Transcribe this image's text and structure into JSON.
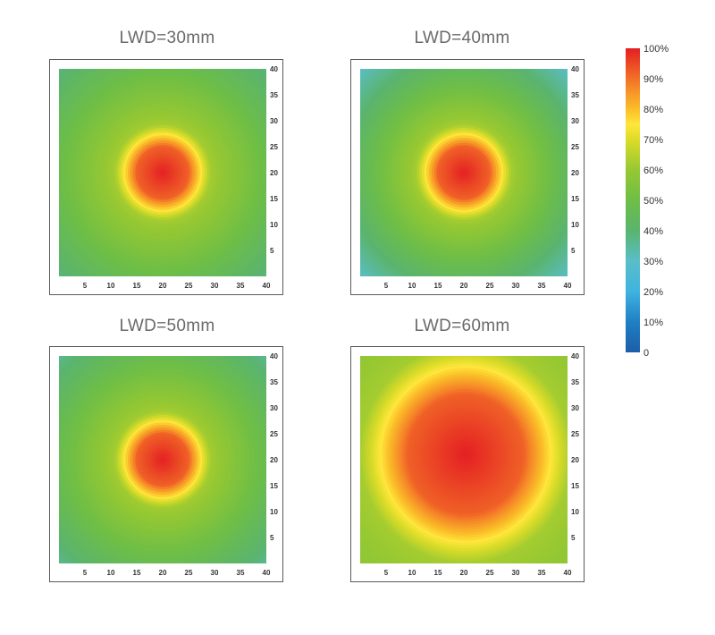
{
  "chart_data": [
    {
      "type": "heatmap",
      "title": "LWD=30mm",
      "x_ticks": [
        "5",
        "10",
        "15",
        "20",
        "25",
        "30",
        "35",
        "40"
      ],
      "y_ticks": [
        "40",
        "35",
        "30",
        "25",
        "20",
        "15",
        "10",
        "5"
      ],
      "xlim": [
        0,
        40
      ],
      "ylim": [
        0,
        40
      ],
      "peak_center": [
        20,
        20
      ],
      "peak_value_percent": 100,
      "edge_value_percent": 38,
      "core_radius": 7
    },
    {
      "type": "heatmap",
      "title": "LWD=40mm",
      "x_ticks": [
        "5",
        "10",
        "15",
        "20",
        "25",
        "30",
        "35",
        "40"
      ],
      "y_ticks": [
        "40",
        "35",
        "30",
        "25",
        "20",
        "15",
        "10",
        "5"
      ],
      "xlim": [
        0,
        40
      ],
      "ylim": [
        0,
        40
      ],
      "peak_center": [
        20,
        20
      ],
      "peak_value_percent": 100,
      "edge_value_percent": 30,
      "core_radius": 7
    },
    {
      "type": "heatmap",
      "title": "LWD=50mm",
      "x_ticks": [
        "5",
        "10",
        "15",
        "20",
        "25",
        "30",
        "35",
        "40"
      ],
      "y_ticks": [
        "40",
        "35",
        "30",
        "25",
        "20",
        "15",
        "10",
        "5"
      ],
      "xlim": [
        0,
        40
      ],
      "ylim": [
        0,
        40
      ],
      "peak_center": [
        20,
        20
      ],
      "peak_value_percent": 100,
      "edge_value_percent": 36,
      "core_radius": 7
    },
    {
      "type": "heatmap",
      "title": "LWD=60mm",
      "x_ticks": [
        "5",
        "10",
        "15",
        "20",
        "25",
        "30",
        "35",
        "40"
      ],
      "y_ticks": [
        "40",
        "35",
        "30",
        "25",
        "20",
        "15",
        "10",
        "5"
      ],
      "xlim": [
        0,
        40
      ],
      "ylim": [
        0,
        40
      ],
      "peak_center": [
        20,
        20
      ],
      "peak_value_percent": 100,
      "edge_value_percent": 58,
      "core_radius": 15
    }
  ],
  "colorbar": {
    "labels": [
      "100%",
      "90%",
      "80%",
      "70%",
      "60%",
      "50%",
      "40%",
      "30%",
      "20%",
      "10%",
      "0"
    ],
    "colors": [
      "#e31a1c",
      "#ef4a24",
      "#f7941d",
      "#ffd324",
      "#d6df23",
      "#7cc243",
      "#4aad52",
      "#35b7a0",
      "#3eb3e0",
      "#1f7fc4",
      "#1d5ea8"
    ]
  }
}
